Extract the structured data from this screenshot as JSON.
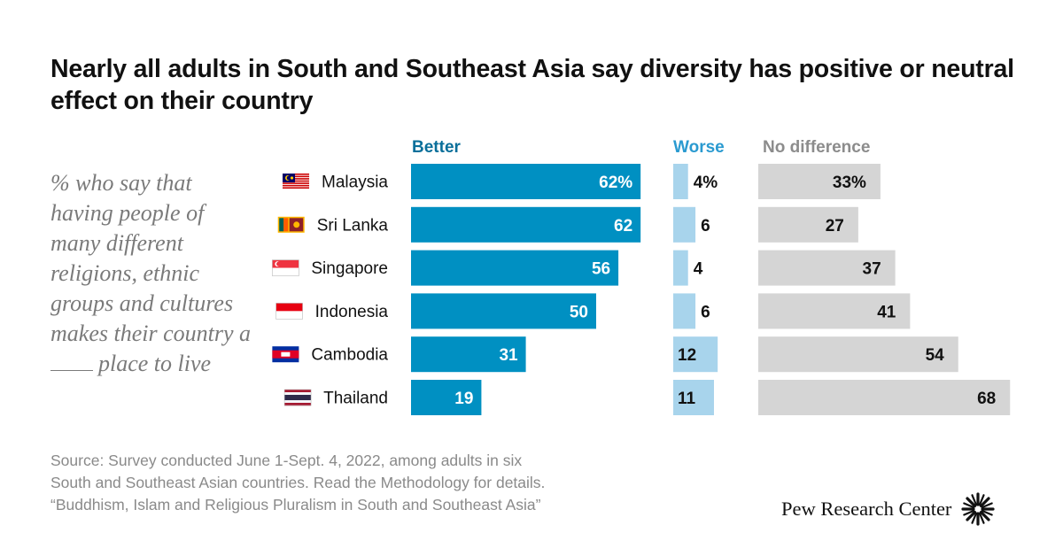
{
  "title": "Nearly all adults in South and Southeast Asia say diversity has positive or neutral effect on their country",
  "subtitle_before_blank": "% who say that having people of many different religions, ethnic groups and cultures makes their country a",
  "subtitle_after_blank": "place to live",
  "headers": {
    "better": "Better",
    "worse": "Worse",
    "no_difference": "No difference"
  },
  "colors": {
    "better": "#0090c2",
    "worse": "#a8d4ec",
    "no_difference": "#d5d5d5",
    "better_header": "#0a6f9a",
    "worse_header": "#2a9ad0",
    "no_difference_header": "#8c8c8c"
  },
  "chart_data": {
    "type": "bar",
    "orientation": "horizontal",
    "categories": [
      "Malaysia",
      "Sri Lanka",
      "Singapore",
      "Indonesia",
      "Cambodia",
      "Thailand"
    ],
    "series": [
      {
        "name": "Better",
        "values": [
          62,
          62,
          56,
          50,
          31,
          19
        ],
        "labels": [
          "62%",
          "62",
          "56",
          "50",
          "31",
          "19"
        ]
      },
      {
        "name": "Worse",
        "values": [
          4,
          6,
          4,
          6,
          12,
          11
        ],
        "labels": [
          "4%",
          "6",
          "4",
          "6",
          "12",
          "11"
        ]
      },
      {
        "name": "No difference",
        "values": [
          33,
          27,
          37,
          41,
          54,
          68
        ],
        "labels": [
          "33%",
          "27",
          "37",
          "41",
          "54",
          "68"
        ]
      }
    ],
    "unit": "%"
  },
  "flags": [
    "malaysia-flag-icon",
    "sri-lanka-flag-icon",
    "singapore-flag-icon",
    "indonesia-flag-icon",
    "cambodia-flag-icon",
    "thailand-flag-icon"
  ],
  "source_lines": [
    "Source: Survey conducted June 1-Sept. 4, 2022, among adults in six",
    "South and Southeast Asian countries. Read the Methodology for details.",
    "“Buddhism, Islam and Religious Pluralism in South and Southeast Asia”"
  ],
  "logo_text": "Pew Research Center",
  "logo_icon": "pew-starburst-icon"
}
